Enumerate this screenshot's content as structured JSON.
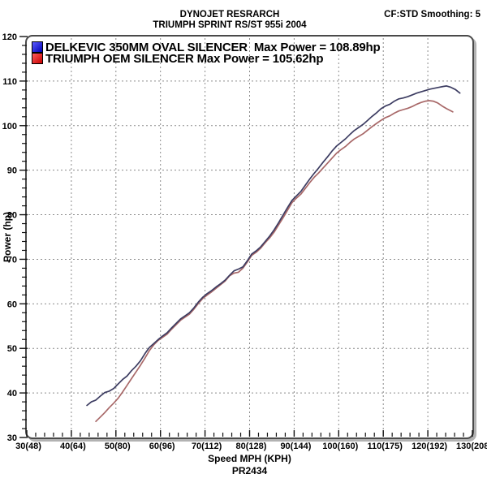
{
  "chart_data": {
    "type": "line",
    "title": "DYNOJET RESRARCH",
    "subtitle": "TRIUMPH SPRINT RS/ST 955i 2004",
    "top_right_annotation": "CF:STD Smoothing: 5",
    "xlabel": "Speed MPH (KPH)",
    "ylabel": "Power (hp)",
    "footnote": "PR2434",
    "xlim": [
      30,
      130
    ],
    "ylim": [
      30,
      120
    ],
    "grid": "dashed",
    "grid_color": "#8a8a8a",
    "legend_position": "top-left",
    "x_minor_step": 2,
    "y_minor_step": 2,
    "x_ticks": [
      {
        "value": 30,
        "label": "30(48)"
      },
      {
        "value": 40,
        "label": "40(64)"
      },
      {
        "value": 50,
        "label": "50(80)"
      },
      {
        "value": 60,
        "label": "60(96)"
      },
      {
        "value": 70,
        "label": "70(112)"
      },
      {
        "value": 80,
        "label": "80(128)"
      },
      {
        "value": 90,
        "label": "90(144)"
      },
      {
        "value": 100,
        "label": "100(160)"
      },
      {
        "value": 110,
        "label": "110(175)"
      },
      {
        "value": 120,
        "label": "120(192)"
      },
      {
        "value": 130,
        "label": "130(208)"
      }
    ],
    "y_ticks": [
      {
        "value": 30,
        "label": "30"
      },
      {
        "value": 40,
        "label": "40"
      },
      {
        "value": 50,
        "label": "50"
      },
      {
        "value": 60,
        "label": "60"
      },
      {
        "value": 70,
        "label": "70"
      },
      {
        "value": 80,
        "label": "80"
      },
      {
        "value": 90,
        "label": "90"
      },
      {
        "value": 100,
        "label": "100"
      },
      {
        "value": 110,
        "label": "110"
      },
      {
        "value": 120,
        "label": "120"
      }
    ],
    "series": [
      {
        "name": "DELKEVIC 350MM OVAL SILENCER",
        "legend_label": "DELKEVIC 350MM OVAL SILENCER  Max Power = 108.89hp",
        "max_power_hp": 108.89,
        "color": "#3d3d62",
        "swatch_colors": [
          "#5c5cff",
          "#0000b4"
        ],
        "points": [
          [
            43.5,
            37.2
          ],
          [
            44.5,
            38.0
          ],
          [
            45.5,
            38.4
          ],
          [
            46.5,
            39.3
          ],
          [
            47.5,
            40.1
          ],
          [
            48.5,
            40.4
          ],
          [
            49.5,
            41.0
          ],
          [
            50.5,
            42.0
          ],
          [
            51.5,
            43.0
          ],
          [
            52.5,
            43.8
          ],
          [
            53.5,
            45.0
          ],
          [
            54.5,
            46.0
          ],
          [
            55.5,
            47.2
          ],
          [
            56.5,
            48.8
          ],
          [
            57.5,
            50.2
          ],
          [
            58.5,
            51.1
          ],
          [
            59.5,
            52.0
          ],
          [
            60.5,
            52.8
          ],
          [
            61.5,
            53.5
          ],
          [
            62.5,
            54.6
          ],
          [
            63.5,
            55.6
          ],
          [
            64.5,
            56.6
          ],
          [
            65.5,
            57.3
          ],
          [
            66.5,
            58.0
          ],
          [
            67.5,
            59.1
          ],
          [
            68.5,
            60.4
          ],
          [
            69.5,
            61.5
          ],
          [
            70.5,
            62.3
          ],
          [
            71.5,
            63.0
          ],
          [
            72.5,
            63.8
          ],
          [
            73.5,
            64.5
          ],
          [
            74.5,
            65.3
          ],
          [
            75.5,
            66.4
          ],
          [
            76.5,
            67.4
          ],
          [
            77.5,
            67.8
          ],
          [
            78.5,
            68.3
          ],
          [
            79.5,
            69.7
          ],
          [
            80.5,
            71.2
          ],
          [
            81.5,
            71.9
          ],
          [
            82.5,
            72.8
          ],
          [
            83.5,
            74.0
          ],
          [
            84.5,
            75.2
          ],
          [
            85.5,
            76.6
          ],
          [
            86.5,
            78.2
          ],
          [
            87.5,
            79.9
          ],
          [
            88.5,
            81.6
          ],
          [
            89.5,
            83.2
          ],
          [
            90.5,
            84.2
          ],
          [
            91.5,
            85.2
          ],
          [
            92.5,
            86.6
          ],
          [
            93.5,
            88.0
          ],
          [
            94.5,
            89.3
          ],
          [
            95.5,
            90.5
          ],
          [
            96.5,
            91.8
          ],
          [
            97.5,
            93.0
          ],
          [
            98.5,
            94.3
          ],
          [
            99.5,
            95.4
          ],
          [
            100.5,
            96.2
          ],
          [
            101.5,
            97.0
          ],
          [
            102.5,
            98.0
          ],
          [
            103.5,
            98.9
          ],
          [
            104.5,
            99.6
          ],
          [
            105.5,
            100.3
          ],
          [
            106.5,
            101.2
          ],
          [
            107.5,
            102.1
          ],
          [
            108.5,
            102.9
          ],
          [
            109.5,
            103.8
          ],
          [
            110.5,
            104.4
          ],
          [
            111.5,
            104.8
          ],
          [
            112.5,
            105.5
          ],
          [
            113.5,
            106.0
          ],
          [
            114.5,
            106.2
          ],
          [
            115.5,
            106.5
          ],
          [
            116.5,
            106.9
          ],
          [
            117.5,
            107.3
          ],
          [
            118.5,
            107.6
          ],
          [
            119.5,
            107.9
          ],
          [
            120.5,
            108.2
          ],
          [
            121.5,
            108.4
          ],
          [
            122.5,
            108.6
          ],
          [
            123.5,
            108.8
          ],
          [
            124.2,
            108.9
          ],
          [
            125.2,
            108.6
          ],
          [
            126.2,
            108.1
          ],
          [
            127.2,
            107.3
          ]
        ]
      },
      {
        "name": "TRIUMPH OEM SILENCER",
        "legend_label": "TRIUMPH OEM SILENCER Max Power = 105.62hp",
        "max_power_hp": 105.62,
        "color": "#a86868",
        "swatch_colors": [
          "#ff5c5c",
          "#c80000"
        ],
        "points": [
          [
            45.5,
            33.6
          ],
          [
            46.5,
            34.6
          ],
          [
            47.5,
            35.6
          ],
          [
            48.5,
            36.7
          ],
          [
            49.5,
            37.7
          ],
          [
            50.5,
            38.8
          ],
          [
            51.5,
            40.2
          ],
          [
            52.5,
            41.7
          ],
          [
            53.5,
            43.2
          ],
          [
            54.5,
            44.7
          ],
          [
            55.5,
            46.2
          ],
          [
            56.5,
            47.8
          ],
          [
            57.5,
            49.5
          ],
          [
            58.5,
            50.8
          ],
          [
            59.5,
            51.8
          ],
          [
            60.5,
            52.5
          ],
          [
            61.5,
            53.2
          ],
          [
            62.5,
            54.3
          ],
          [
            63.5,
            55.3
          ],
          [
            64.5,
            56.3
          ],
          [
            65.5,
            57.0
          ],
          [
            66.5,
            57.7
          ],
          [
            67.5,
            58.8
          ],
          [
            68.5,
            60.1
          ],
          [
            69.5,
            61.2
          ],
          [
            70.5,
            62.0
          ],
          [
            71.5,
            62.7
          ],
          [
            72.5,
            63.5
          ],
          [
            73.5,
            64.3
          ],
          [
            74.5,
            65.1
          ],
          [
            75.5,
            66.3
          ],
          [
            76.5,
            66.9
          ],
          [
            77.5,
            67.1
          ],
          [
            78.5,
            68.0
          ],
          [
            79.5,
            69.4
          ],
          [
            80.5,
            70.9
          ],
          [
            81.5,
            71.6
          ],
          [
            82.5,
            72.5
          ],
          [
            83.5,
            73.7
          ],
          [
            84.5,
            74.8
          ],
          [
            85.5,
            76.1
          ],
          [
            86.5,
            77.7
          ],
          [
            87.5,
            79.3
          ],
          [
            88.5,
            81.0
          ],
          [
            89.5,
            82.7
          ],
          [
            90.5,
            83.7
          ],
          [
            91.5,
            84.6
          ],
          [
            92.5,
            85.9
          ],
          [
            93.5,
            87.2
          ],
          [
            94.5,
            88.4
          ],
          [
            95.5,
            89.4
          ],
          [
            96.5,
            90.5
          ],
          [
            97.5,
            91.6
          ],
          [
            98.5,
            92.7
          ],
          [
            99.5,
            93.8
          ],
          [
            100.5,
            94.6
          ],
          [
            101.5,
            95.3
          ],
          [
            102.5,
            96.2
          ],
          [
            103.5,
            97.0
          ],
          [
            104.5,
            97.6
          ],
          [
            105.5,
            98.2
          ],
          [
            106.5,
            99.0
          ],
          [
            107.5,
            99.8
          ],
          [
            108.5,
            100.5
          ],
          [
            109.5,
            101.2
          ],
          [
            110.5,
            101.8
          ],
          [
            111.5,
            102.2
          ],
          [
            112.5,
            102.8
          ],
          [
            113.5,
            103.3
          ],
          [
            114.5,
            103.6
          ],
          [
            115.5,
            103.9
          ],
          [
            116.5,
            104.3
          ],
          [
            117.5,
            104.8
          ],
          [
            118.5,
            105.2
          ],
          [
            119.5,
            105.5
          ],
          [
            120.3,
            105.6
          ],
          [
            121.2,
            105.5
          ],
          [
            122.2,
            105.1
          ],
          [
            123.2,
            104.4
          ],
          [
            124.2,
            103.8
          ],
          [
            125.6,
            103.1
          ]
        ]
      }
    ]
  }
}
